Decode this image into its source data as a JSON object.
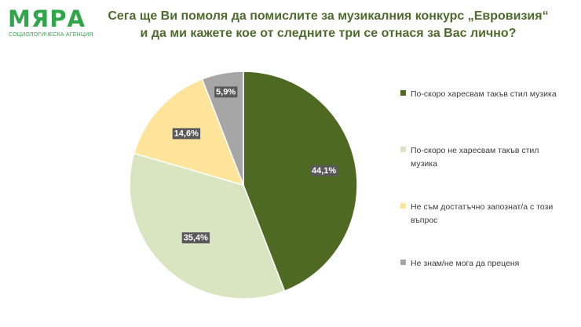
{
  "logo": {
    "word": "МЯРА",
    "subtitle": "СОЦИОЛОГИЧЕСКА АГЕНЦИЯ",
    "color": "#2fa64a"
  },
  "title": {
    "line1": "Сега ще Ви помоля да помислите за музикалния конкурс „Евровизия“",
    "line2": "и да ми кажете кое от следните три се отнася за Вас лично?"
  },
  "chart_data": {
    "type": "pie",
    "title": "",
    "start_angle_deg": 0,
    "direction": "clockwise",
    "legend_position": "right",
    "slices": [
      {
        "label": "По-скоро харесвам такъв стил музика",
        "value": 44.1,
        "value_label": "44,1%",
        "color": "#4e6a22"
      },
      {
        "label": "По-скоро не харесвам такъв стил музика",
        "value": 35.4,
        "value_label": "35,4%",
        "color": "#d9e4c1"
      },
      {
        "label": "Не съм достатъчно запознат/а с този въпрос",
        "value": 14.6,
        "value_label": "14,6%",
        "color": "#fde49a"
      },
      {
        "label": "Не знам/не мога да преценя",
        "value": 5.9,
        "value_label": "5,9%",
        "color": "#a6a6a6"
      }
    ]
  }
}
